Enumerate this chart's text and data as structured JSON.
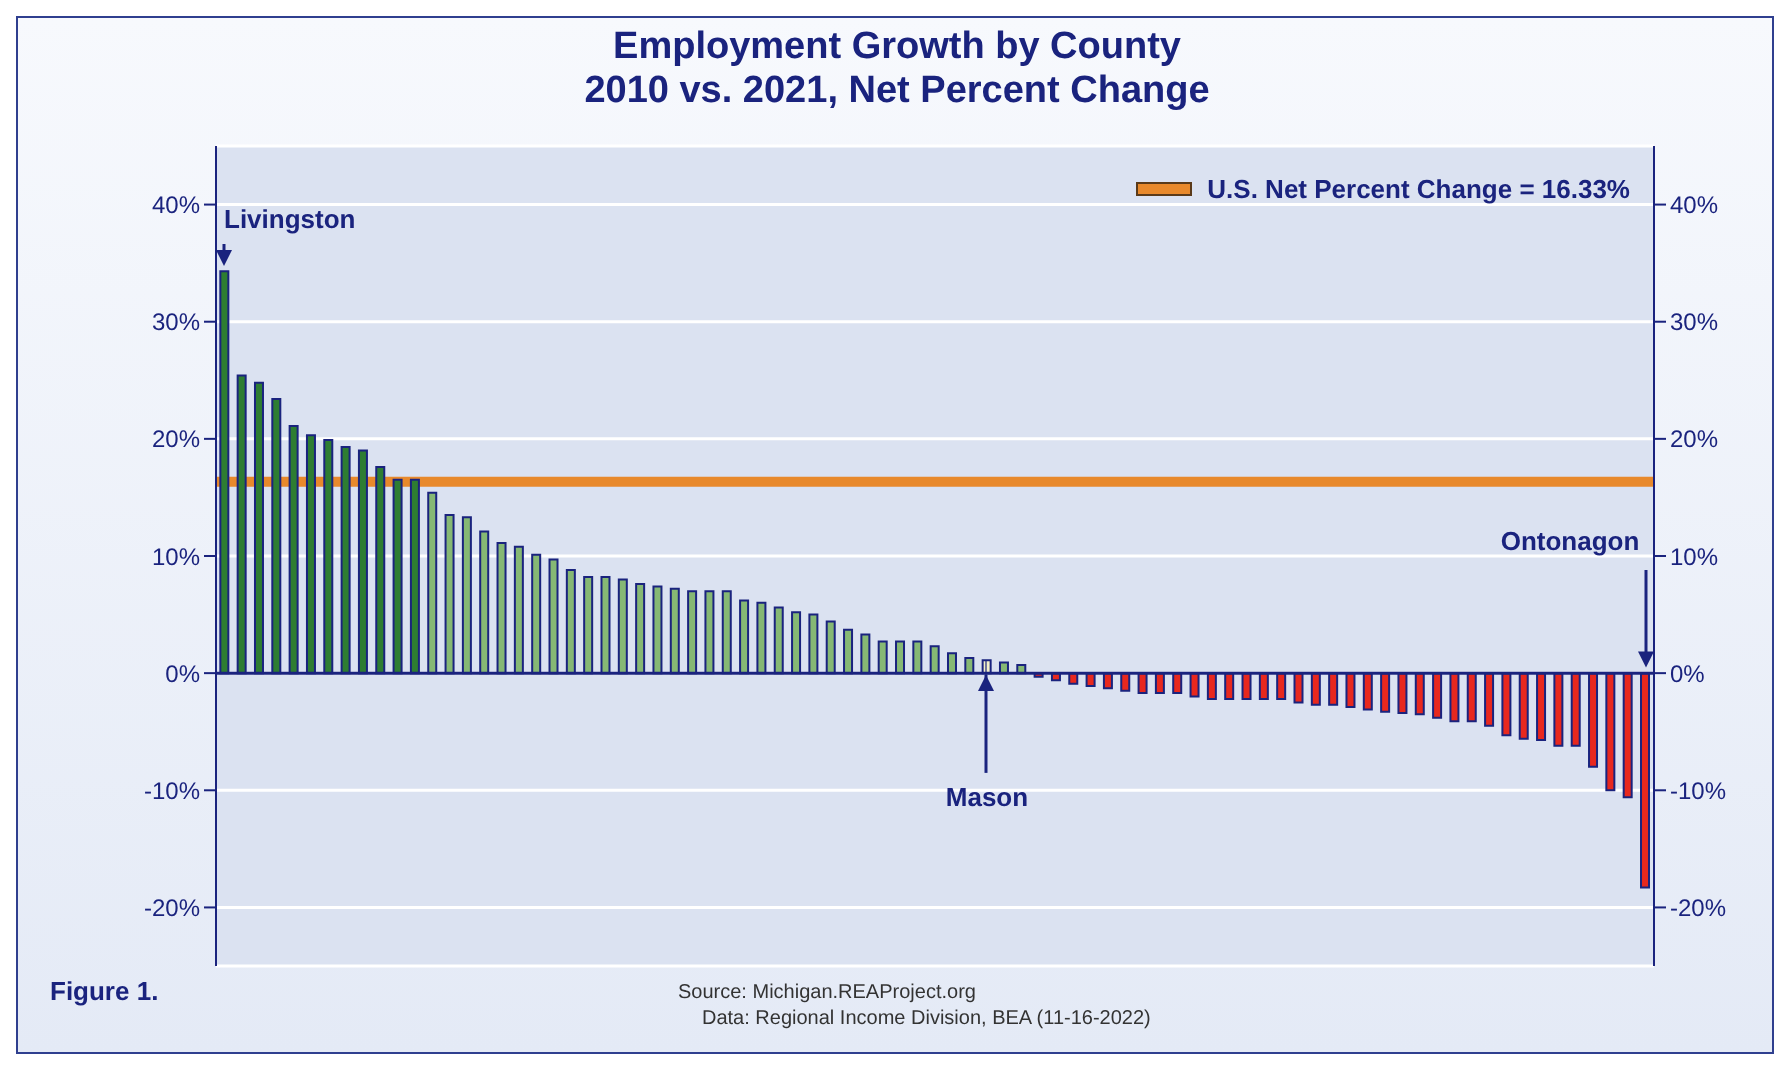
{
  "chart_data": {
    "type": "bar",
    "title": "Employment Growth by County",
    "subtitle": "2010 vs. 2021, Net Percent Change",
    "categories": [
      null,
      null,
      null,
      null,
      null,
      null,
      null,
      null,
      null,
      null,
      null,
      null,
      null,
      null,
      null,
      null,
      null,
      null,
      null,
      null,
      null,
      null,
      null,
      null,
      null,
      null,
      null,
      null,
      null,
      null,
      null,
      null,
      null,
      null,
      null,
      null,
      null,
      null,
      null,
      null,
      null,
      null,
      null,
      null,
      null,
      null,
      null,
      null,
      null,
      null,
      null,
      null,
      null,
      null,
      null,
      null,
      null,
      null,
      null,
      null,
      null,
      null,
      null,
      null,
      null,
      null,
      null,
      null,
      null,
      null,
      null,
      null,
      null,
      null,
      null,
      null,
      null,
      null,
      null,
      null,
      null,
      null,
      null
    ],
    "values": [
      34.3,
      25.4,
      24.8,
      23.4,
      21.1,
      20.3,
      19.9,
      19.3,
      19.0,
      17.6,
      16.5,
      16.5,
      15.4,
      13.5,
      13.3,
      12.1,
      11.1,
      10.8,
      10.1,
      9.7,
      8.8,
      8.2,
      8.2,
      8.0,
      7.6,
      7.4,
      7.2,
      7.0,
      7.0,
      7.0,
      6.2,
      6.0,
      5.6,
      5.2,
      5.0,
      4.4,
      3.7,
      3.3,
      2.7,
      2.7,
      2.7,
      2.3,
      1.7,
      1.3,
      1.1,
      0.9,
      0.7,
      -0.3,
      -0.6,
      -0.9,
      -1.1,
      -1.3,
      -1.5,
      -1.7,
      -1.7,
      -1.7,
      -2.0,
      -2.2,
      -2.2,
      -2.2,
      -2.2,
      -2.2,
      -2.5,
      -2.7,
      -2.7,
      -2.9,
      -3.1,
      -3.3,
      -3.4,
      -3.5,
      -3.8,
      -4.1,
      -4.1,
      -4.5,
      -5.3,
      -5.6,
      -5.7,
      -6.2,
      -6.2,
      -8.0,
      -10.0,
      -10.6,
      -18.3
    ],
    "colors": [
      "#2e7d32",
      "#2e7d32",
      "#2e7d32",
      "#2e7d32",
      "#2e7d32",
      "#2e7d32",
      "#2e7d32",
      "#2e7d32",
      "#2e7d32",
      "#2e7d32",
      "#2e7d32",
      "#2e7d32",
      "#86b874",
      "#86b874",
      "#86b874",
      "#86b874",
      "#86b874",
      "#86b874",
      "#86b874",
      "#86b874",
      "#86b874",
      "#86b874",
      "#86b874",
      "#86b874",
      "#86b874",
      "#86b874",
      "#86b874",
      "#86b874",
      "#86b874",
      "#86b874",
      "#86b874",
      "#86b874",
      "#86b874",
      "#86b874",
      "#86b874",
      "#86b874",
      "#86b874",
      "#86b874",
      "#86b874",
      "#86b874",
      "#86b874",
      "#86b874",
      "#86b874",
      "#86b874",
      "#f3f0c8",
      "#86b874",
      "#86b874",
      "#e8281e",
      "#e8281e",
      "#e8281e",
      "#e8281e",
      "#e8281e",
      "#e8281e",
      "#e8281e",
      "#e8281e",
      "#e8281e",
      "#e8281e",
      "#e8281e",
      "#e8281e",
      "#e8281e",
      "#e8281e",
      "#e8281e",
      "#e8281e",
      "#e8281e",
      "#e8281e",
      "#e8281e",
      "#e8281e",
      "#e8281e",
      "#e8281e",
      "#e8281e",
      "#e8281e",
      "#e8281e",
      "#e8281e",
      "#e8281e",
      "#e8281e",
      "#e8281e",
      "#e8281e",
      "#e8281e",
      "#e8281e",
      "#e8281e",
      "#e8281e",
      "#e8281e",
      "#e8281e"
    ],
    "ylim": [
      -25,
      45
    ],
    "yticks": [
      {
        "value": -20,
        "label": "-20%"
      },
      {
        "value": -10,
        "label": "-10%"
      },
      {
        "value": 0,
        "label": "0%"
      },
      {
        "value": 10,
        "label": "10%"
      },
      {
        "value": 20,
        "label": "20%"
      },
      {
        "value": 30,
        "label": "30%"
      },
      {
        "value": 40,
        "label": "40%"
      }
    ],
    "y2lim": [
      -25,
      45
    ],
    "y2ticks": [
      {
        "value": -20,
        "label": "-20%"
      },
      {
        "value": -10,
        "label": "-10%"
      },
      {
        "value": 0,
        "label": "0%"
      },
      {
        "value": 10,
        "label": "10%"
      },
      {
        "value": 20,
        "label": "20%"
      },
      {
        "value": 30,
        "label": "30%"
      },
      {
        "value": 40,
        "label": "40%"
      }
    ],
    "ref_lines": [
      {
        "axis": "y",
        "value": 16.33,
        "label": "U.S. Net Percent Change = 16.33%",
        "color": "#e8892c"
      },
      {
        "axis": "y",
        "value": 0,
        "color": "#1a237e"
      }
    ],
    "legend": "top right",
    "grid": "y",
    "tick_labels": "y",
    "annotations": [
      "Livingston",
      {
        "text": "Mason",
        "y": 1.1
      },
      "Ontonagon",
      "Figure 1.",
      "Source: Michigan.REAProject.org",
      "Data: Regional Income Division, BEA (11-16-2022)"
    ]
  }
}
